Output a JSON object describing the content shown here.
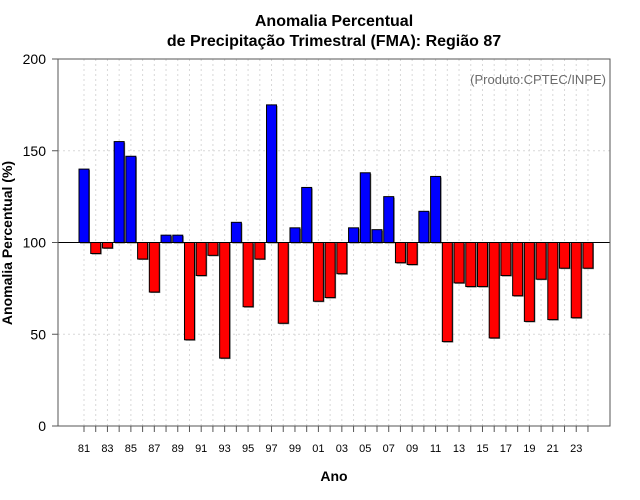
{
  "chart_data": {
    "type": "bar",
    "title_line1": "Anomalia Percentual",
    "title_line2": "de Precipitação Trimestral (FMA): Região 87",
    "xlabel": "Ano",
    "ylabel": "Anomalia Percentual (%)",
    "credit": "(Produto:CPTEC/INPE)",
    "ylim": [
      0,
      200
    ],
    "baseline": 100,
    "yticks": [
      0,
      50,
      100,
      150,
      200
    ],
    "grid": true,
    "colors": {
      "above": "#0000ff",
      "below": "#ff0000",
      "border": "#000000",
      "baseline": "#000000"
    },
    "x_tick_labels": [
      "81",
      "83",
      "85",
      "87",
      "89",
      "91",
      "93",
      "95",
      "97",
      "99",
      "01",
      "03",
      "05",
      "07",
      "09",
      "11",
      "13",
      "15",
      "17",
      "19",
      "21",
      "23"
    ],
    "categories": [
      1981,
      1982,
      1983,
      1984,
      1985,
      1986,
      1987,
      1988,
      1989,
      1990,
      1991,
      1992,
      1993,
      1994,
      1995,
      1996,
      1997,
      1998,
      1999,
      2000,
      2001,
      2002,
      2003,
      2004,
      2005,
      2006,
      2007,
      2008,
      2009,
      2010,
      2011,
      2012,
      2013,
      2014,
      2015,
      2016,
      2017,
      2018,
      2019,
      2020,
      2021,
      2022,
      2023,
      2024
    ],
    "values": [
      140,
      94,
      97,
      155,
      147,
      91,
      73,
      104,
      104,
      47,
      82,
      93,
      37,
      111,
      65,
      91,
      175,
      56,
      108,
      130,
      68,
      70,
      83,
      108,
      138,
      107,
      125,
      89,
      88,
      117,
      136,
      46,
      78,
      76,
      76,
      48,
      82,
      71,
      57,
      80,
      58,
      86,
      59,
      86
    ]
  }
}
